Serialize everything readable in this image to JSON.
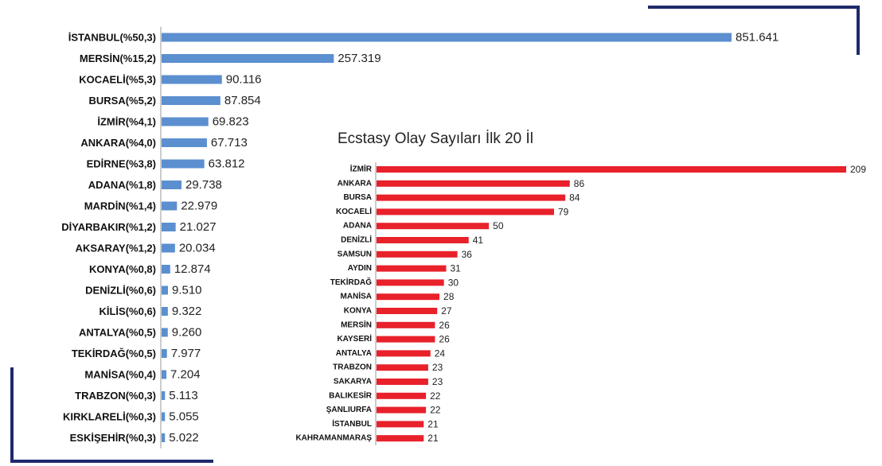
{
  "colors": {
    "chart1_bar": "#5b8fcf",
    "chart2_bar": "#e8212b",
    "axis": "#9a9a9a",
    "frame": "#1f2a6b"
  },
  "chart_data": [
    {
      "type": "bar",
      "orientation": "horizontal",
      "title": "",
      "xlabel": "",
      "ylabel": "",
      "grid": false,
      "xlim": [
        0,
        851.641
      ],
      "categories": [
        "İSTANBUL(%50,3)",
        "MERSİN(%15,2)",
        "KOCAELİ(%5,3)",
        "BURSA(%5,2)",
        "İZMİR(%4,1)",
        "ANKARA(%4,0)",
        "EDİRNE(%3,8)",
        "ADANA(%1,8)",
        "MARDİN(%1,4)",
        "DİYARBAKIR(%1,2)",
        "AKSARAY(%1,2)",
        "KONYA(%0,8)",
        "DENİZLİ(%0,6)",
        "KİLİS(%0,6)",
        "ANTALYA(%0,5)",
        "TEKİRDAĞ(%0,5)",
        "MANİSA(%0,4)",
        "TRABZON(%0,3)",
        "KIRKLARELİ(%0,3)",
        "ESKİŞEHİR(%0,3)"
      ],
      "values": [
        851.641,
        257.319,
        90.116,
        87.854,
        69.823,
        67.713,
        63.812,
        29.738,
        22.979,
        21.027,
        20.034,
        12.874,
        9.51,
        9.322,
        9.26,
        7.977,
        7.204,
        5.113,
        5.055,
        5.022
      ],
      "value_labels": [
        "851.641",
        "257.319",
        "90.116",
        "87.854",
        "69.823",
        "67.713",
        "63.812",
        "29.738",
        "22.979",
        "21.027",
        "20.034",
        "12.874",
        "9.510",
        "9.322",
        "9.260",
        "7.977",
        "7.204",
        "5.113",
        "5.055",
        "5.022"
      ]
    },
    {
      "type": "bar",
      "orientation": "horizontal",
      "title": "Ecstasy Olay Sayıları İlk 20 İl",
      "xlabel": "",
      "ylabel": "",
      "grid": false,
      "xlim": [
        0,
        209
      ],
      "categories": [
        "İZMİR",
        "ANKARA",
        "BURSA",
        "KOCAELİ",
        "ADANA",
        "DENİZLİ",
        "SAMSUN",
        "AYDIN",
        "TEKİRDAĞ",
        "MANİSA",
        "KONYA",
        "MERSİN",
        "KAYSERİ",
        "ANTALYA",
        "TRABZON",
        "SAKARYA",
        "BALIKESİR",
        "ŞANLIURFA",
        "İSTANBUL",
        "KAHRAMANMARAŞ"
      ],
      "values": [
        209,
        86,
        84,
        79,
        50,
        41,
        36,
        31,
        30,
        28,
        27,
        26,
        26,
        24,
        23,
        23,
        22,
        22,
        21,
        21
      ],
      "value_labels": [
        "209",
        "86",
        "84",
        "79",
        "50",
        "41",
        "36",
        "31",
        "30",
        "28",
        "27",
        "26",
        "26",
        "24",
        "23",
        "23",
        "22",
        "22",
        "21",
        "21"
      ]
    }
  ]
}
